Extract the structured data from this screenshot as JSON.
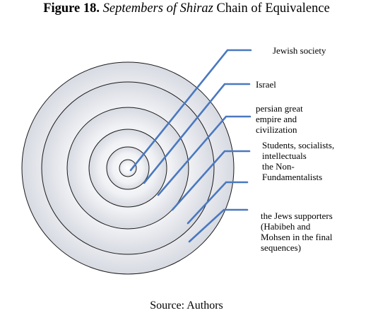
{
  "title": {
    "figure_number": "Figure 18.",
    "film_title": "Septembers of Shiraz",
    "rest": "Chain of Equivalence"
  },
  "labels": [
    "Jewish society",
    "Israel",
    "persian great\nempire and\ncivilization",
    "Students, socialists,\nintellectuals\nthe Non-\nFundamentalists",
    "the Jews supporters\n(Habibeh and\nMohsen in the final\nsequences)"
  ],
  "source": "Source: Authors",
  "colors": {
    "leader_line": "#4a78c0",
    "circle_stroke": "#1a1a1a",
    "circle_fill_inner": "#ffffff",
    "circle_fill_outer": "#d7dae2"
  }
}
